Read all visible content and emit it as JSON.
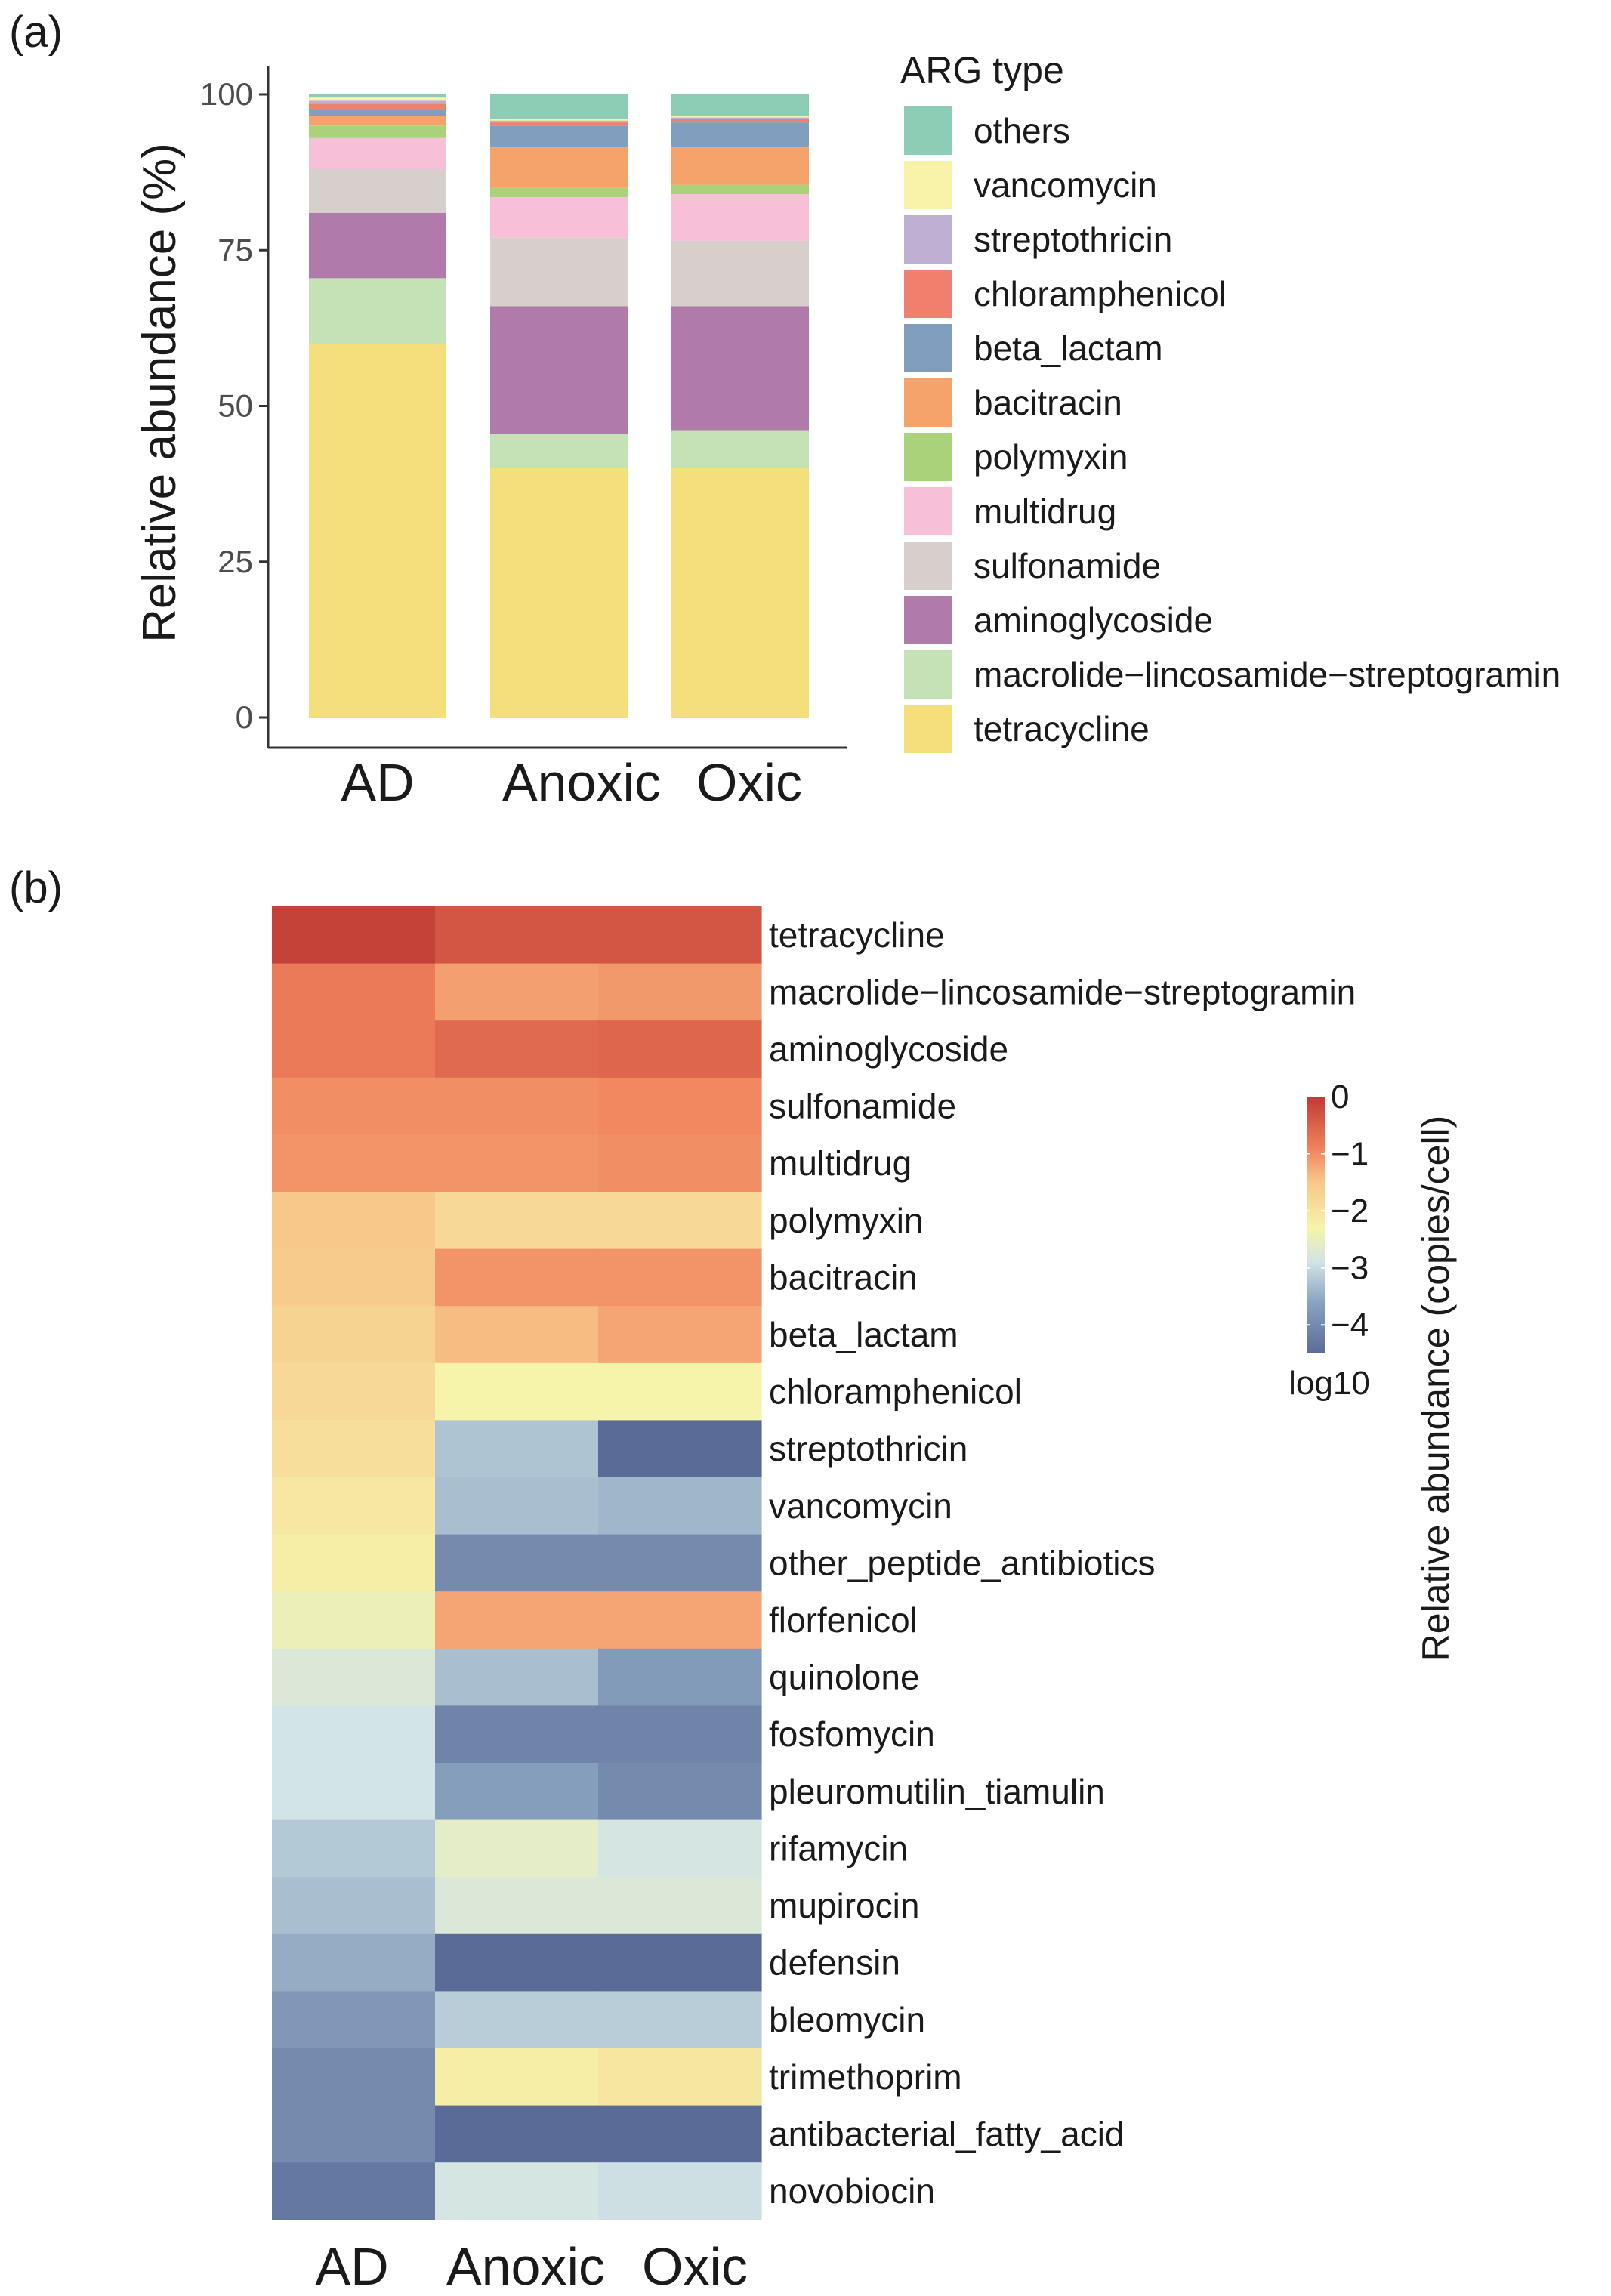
{
  "panel_labels": {
    "a": "(a)",
    "b": "(b)"
  },
  "colors": {
    "others": "#8dcdb5",
    "vancomycin": "#f8f3a8",
    "streptothricin": "#bdb0d2",
    "chloramphenicol": "#f07f6e",
    "beta_lactam": "#829ebf",
    "bacitracin": "#f5a36a",
    "polymyxin": "#a9d27a",
    "multidrug": "#f8bfd8",
    "sulfonamide": "#d7cfcc",
    "aminoglycoside": "#b07aab",
    "macrolide-lincosamide-streptogramin": "#c5e2b6",
    "tetracycline": "#f5df7d",
    "axis": "#333333"
  },
  "chart_data": [
    {
      "type": "bar",
      "stacked": true,
      "title": "",
      "xlabel": "",
      "ylabel": "Relative abundance (%)",
      "ylim": [
        0,
        100
      ],
      "yticks": [
        0,
        25,
        50,
        75,
        100
      ],
      "categories": [
        "AD",
        "Anoxic",
        "Oxic"
      ],
      "legend_title": "ARG type",
      "legend_position": "right",
      "series": [
        {
          "key": "tetracycline",
          "name": "tetracycline",
          "values": [
            60,
            40,
            40
          ]
        },
        {
          "key": "macrolide-lincosamide-streptogramin",
          "name": "macrolide−lincosamide−streptogramin",
          "values": [
            10.5,
            5.5,
            6
          ]
        },
        {
          "key": "aminoglycoside",
          "name": "aminoglycoside",
          "values": [
            10.5,
            20.5,
            20
          ]
        },
        {
          "key": "sulfonamide",
          "name": "sulfonamide",
          "values": [
            7,
            11,
            10.5
          ]
        },
        {
          "key": "multidrug",
          "name": "multidrug",
          "values": [
            5,
            6.5,
            7.5
          ]
        },
        {
          "key": "polymyxin",
          "name": "polymyxin",
          "values": [
            2,
            1.5,
            1.5
          ]
        },
        {
          "key": "bacitracin",
          "name": "bacitracin",
          "values": [
            1.5,
            6.5,
            6
          ]
        },
        {
          "key": "beta_lactam",
          "name": "beta_lactam",
          "values": [
            1,
            3.5,
            4
          ]
        },
        {
          "key": "chloramphenicol",
          "name": "chloramphenicol",
          "values": [
            1,
            0.5,
            0.5
          ]
        },
        {
          "key": "streptothricin",
          "name": "streptothricin",
          "values": [
            0.5,
            0.3,
            0.3
          ]
        },
        {
          "key": "vancomycin",
          "name": "vancomycin",
          "values": [
            0.5,
            0.2,
            0.2
          ]
        },
        {
          "key": "others",
          "name": "others",
          "values": [
            0.5,
            4,
            3.5
          ]
        }
      ]
    },
    {
      "type": "heatmap",
      "columns": [
        "AD",
        "Anoxic",
        "Oxic"
      ],
      "rows": [
        "tetracycline",
        "macrolide−lincosamide−streptogramin",
        "aminoglycoside",
        "sulfonamide",
        "multidrug",
        "polymyxin",
        "bacitracin",
        "beta_lactam",
        "chloramphenicol",
        "streptothricin",
        "vancomycin",
        "other_peptide_antibiotics",
        "florfenicol",
        "quinolone",
        "fosfomycin",
        "pleuromutilin_tiamulin",
        "rifamycin",
        "mupirocin",
        "defensin",
        "bleomycin",
        "trimethoprim",
        "antibacterial_fatty_acid",
        "novobiocin"
      ],
      "values": [
        [
          -0.1,
          -0.35,
          -0.35
        ],
        [
          -0.8,
          -1.15,
          -1.1
        ],
        [
          -0.8,
          -0.6,
          -0.55
        ],
        [
          -1.0,
          -1.0,
          -0.95
        ],
        [
          -1.05,
          -1.05,
          -1.0
        ],
        [
          -1.5,
          -1.8,
          -1.8
        ],
        [
          -1.55,
          -1.05,
          -1.05
        ],
        [
          -1.7,
          -1.4,
          -1.2
        ],
        [
          -1.8,
          -2.3,
          -2.3
        ],
        [
          -1.9,
          -3.25,
          -4.5
        ],
        [
          -2.1,
          -3.3,
          -3.4
        ],
        [
          -2.2,
          -4.0,
          -4.0
        ],
        [
          -2.45,
          -1.2,
          -1.2
        ],
        [
          -2.75,
          -3.3,
          -3.75
        ],
        [
          -2.9,
          -4.1,
          -4.1
        ],
        [
          -2.9,
          -3.7,
          -4.0
        ],
        [
          -3.2,
          -2.6,
          -2.85
        ],
        [
          -3.3,
          -2.75,
          -2.75
        ],
        [
          -3.5,
          -4.5,
          -4.5
        ],
        [
          -3.8,
          -3.15,
          -3.15
        ],
        [
          -4.0,
          -2.2,
          -2.05
        ],
        [
          -4.0,
          -4.5,
          -4.5
        ],
        [
          -4.3,
          -2.85,
          -2.95
        ]
      ],
      "colorbar": {
        "title": "Relative abundance (copies/cell)",
        "label": "log10",
        "range": [
          -4.5,
          0
        ],
        "ticks": [
          0,
          -1,
          -2,
          -3,
          -4
        ],
        "tick_labels": [
          "0",
          "−1",
          "−2",
          "−3",
          "−4"
        ]
      }
    }
  ]
}
